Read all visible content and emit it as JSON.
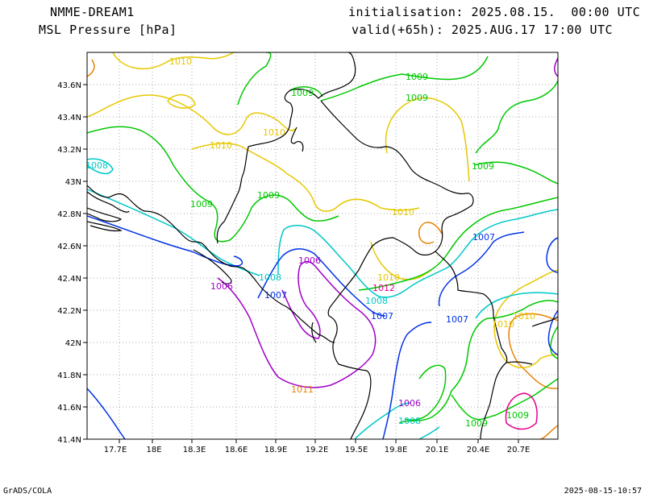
{
  "header": {
    "model": "NMME-DREAM1",
    "variable": "MSL Pressure [hPa]",
    "initialisation": "initialisation: 2025.08.15.  00:00 UTC",
    "valid": "valid(+65h): 2025.AUG.17 17:00 UTC"
  },
  "axes": {
    "x_ticks": [
      "17.7E",
      "18E",
      "18.3E",
      "18.6E",
      "18.9E",
      "19.2E",
      "19.5E",
      "19.8E",
      "20.1E",
      "20.4E",
      "20.7E"
    ],
    "y_ticks": [
      "43.6N",
      "43.4N",
      "43.2N",
      "43N",
      "42.8N",
      "42.6N",
      "42.4N",
      "42.2N",
      "42N",
      "41.8N",
      "41.6N",
      "41.4N"
    ]
  },
  "contour_labels": [
    {
      "text": "1010",
      "color": "#e6c800"
    },
    {
      "text": "1009",
      "color": "#00c800"
    },
    {
      "text": "1009",
      "color": "#00c800"
    },
    {
      "text": "1010",
      "color": "#e6c800"
    },
    {
      "text": "1010",
      "color": "#e6c800"
    },
    {
      "text": "1010",
      "color": "#e6c800"
    },
    {
      "text": "1008",
      "color": "#00c8c8"
    },
    {
      "text": "1009",
      "color": "#00c800"
    },
    {
      "text": "1009",
      "color": "#00c800"
    },
    {
      "text": "1009",
      "color": "#00c800"
    },
    {
      "text": "1010",
      "color": "#e6c800"
    },
    {
      "text": "1007",
      "color": "#0032e6"
    },
    {
      "text": "1006",
      "color": "#a000c8"
    },
    {
      "text": "1006",
      "color": "#a000c8"
    },
    {
      "text": "1008",
      "color": "#00c8c8"
    },
    {
      "text": "1007",
      "color": "#0032e6"
    },
    {
      "text": "1010",
      "color": "#e6c800"
    },
    {
      "text": "1009",
      "color": "#00c800"
    },
    {
      "text": "1008",
      "color": "#00c8c8"
    },
    {
      "text": "1007",
      "color": "#0032e6"
    },
    {
      "text": "1007",
      "color": "#0032e6"
    },
    {
      "text": "1010",
      "color": "#e6c800"
    },
    {
      "text": "1011",
      "color": "#e68200"
    },
    {
      "text": "1006",
      "color": "#a000c8"
    },
    {
      "text": "1008",
      "color": "#00c8c8"
    },
    {
      "text": "1009",
      "color": "#00c800"
    },
    {
      "text": "1009",
      "color": "#00c800"
    },
    {
      "text": "1012",
      "color": "#e6008c"
    }
  ],
  "footer": {
    "left": "GrADS/COLA",
    "right": "2025-08-15-10:57"
  }
}
